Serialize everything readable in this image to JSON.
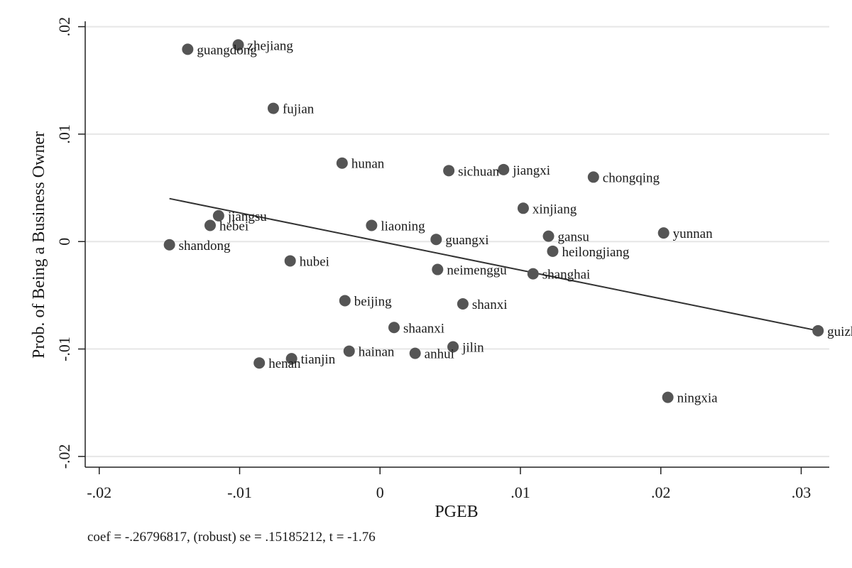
{
  "chart_data": {
    "type": "scatter",
    "title": "",
    "xlabel": "PGEB",
    "ylabel": "Prob. of Being a Business Owner",
    "note": "coef = -.26796817, (robust) se = .15185212, t = -1.76",
    "xlim": [
      -0.021,
      0.032
    ],
    "ylim": [
      -0.021,
      0.0205
    ],
    "x_ticks": [
      -0.02,
      -0.01,
      0,
      0.01,
      0.02,
      0.03
    ],
    "x_tick_labels": [
      "-.02",
      "-.01",
      "0",
      ".01",
      ".02",
      ".03"
    ],
    "y_ticks": [
      -0.02,
      -0.01,
      0,
      0.01,
      0.02
    ],
    "y_tick_labels": [
      "-.02",
      "-.01",
      "0",
      ".01",
      ".02"
    ],
    "grid": true,
    "marker_color": "#555555",
    "fit_line": {
      "slope": -0.26796817,
      "x": [
        -0.015,
        0.0312
      ],
      "y": [
        0.004,
        -0.0083
      ],
      "color": "#333333"
    },
    "points": [
      {
        "label": "zhejiang",
        "x": -0.0101,
        "y": 0.0183
      },
      {
        "label": "guangdong",
        "x": -0.0137,
        "y": 0.0179
      },
      {
        "label": "fujian",
        "x": -0.0076,
        "y": 0.0124
      },
      {
        "label": "hunan",
        "x": -0.0027,
        "y": 0.0073
      },
      {
        "label": "sichuan",
        "x": 0.0049,
        "y": 0.0066
      },
      {
        "label": "jiangxi",
        "x": 0.0088,
        "y": 0.0067
      },
      {
        "label": "chongqing",
        "x": 0.0152,
        "y": 0.006
      },
      {
        "label": "xinjiang",
        "x": 0.0102,
        "y": 0.0031
      },
      {
        "label": "jiangsu",
        "x": -0.0115,
        "y": 0.0024
      },
      {
        "label": "hebei",
        "x": -0.0121,
        "y": 0.0015
      },
      {
        "label": "liaoning",
        "x": -0.0006,
        "y": 0.0015
      },
      {
        "label": "guangxi",
        "x": 0.004,
        "y": 0.0002
      },
      {
        "label": "gansu",
        "x": 0.012,
        "y": 0.0005
      },
      {
        "label": "yunnan",
        "x": 0.0202,
        "y": 0.0008
      },
      {
        "label": "heilongjiang",
        "x": 0.0123,
        "y": -0.0009
      },
      {
        "label": "shandong",
        "x": -0.015,
        "y": -0.0003
      },
      {
        "label": "hubei",
        "x": -0.0064,
        "y": -0.0018
      },
      {
        "label": "neimenggu",
        "x": 0.0041,
        "y": -0.0026
      },
      {
        "label": "shanghai",
        "x": 0.0109,
        "y": -0.003
      },
      {
        "label": "beijing",
        "x": -0.0025,
        "y": -0.0055
      },
      {
        "label": "shanxi",
        "x": 0.0059,
        "y": -0.0058
      },
      {
        "label": "shaanxi",
        "x": 0.001,
        "y": -0.008
      },
      {
        "label": "guizhou",
        "x": 0.0312,
        "y": -0.0083
      },
      {
        "label": "jilin",
        "x": 0.0052,
        "y": -0.0098
      },
      {
        "label": "hainan",
        "x": -0.0022,
        "y": -0.0102
      },
      {
        "label": "anhui",
        "x": 0.0025,
        "y": -0.0104
      },
      {
        "label": "tianjin",
        "x": -0.0063,
        "y": -0.0109
      },
      {
        "label": "henan",
        "x": -0.0086,
        "y": -0.0113
      },
      {
        "label": "ningxia",
        "x": 0.0205,
        "y": -0.0145
      }
    ]
  }
}
